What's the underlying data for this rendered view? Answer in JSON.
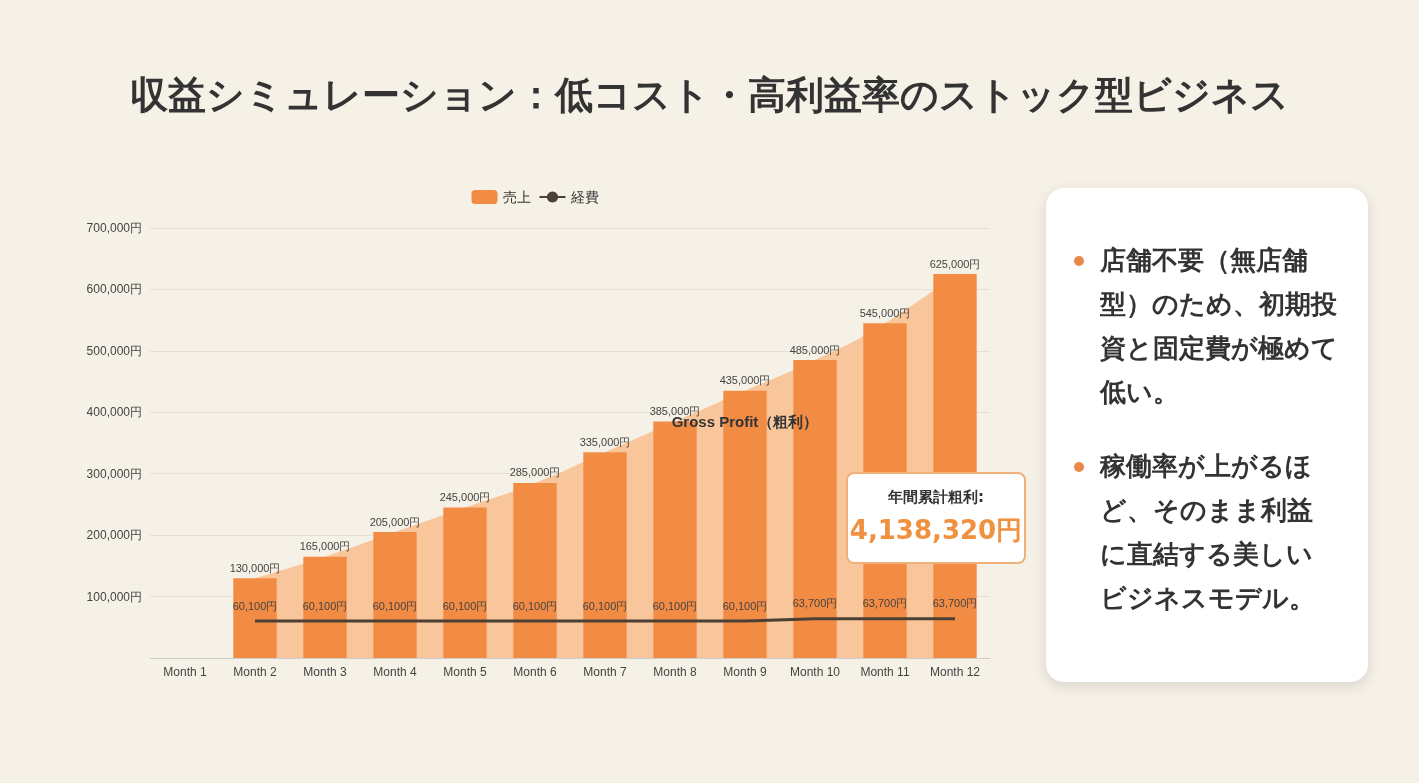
{
  "chart_data": {
    "type": "bar",
    "title": "収益シミュレーション：低コスト・高利益率のストック型ビジネス",
    "categories": [
      "Month 1",
      "Month 2",
      "Month 3",
      "Month 4",
      "Month 5",
      "Month 6",
      "Month 7",
      "Month 8",
      "Month 9",
      "Month 10",
      "Month 11",
      "Month 12"
    ],
    "series": [
      {
        "type": "area",
        "name": "Gross Profit（粗利）",
        "color": "#f8c69a",
        "values": [
          null,
          130000,
          165000,
          205000,
          245000,
          285000,
          335000,
          385000,
          435000,
          485000,
          545000,
          625000
        ]
      },
      {
        "name": "売上",
        "color": "#f28c45",
        "values": [
          null,
          130000,
          165000,
          205000,
          245000,
          285000,
          335000,
          385000,
          435000,
          485000,
          545000,
          625000
        ],
        "value_labels": [
          null,
          "130,000円",
          "165,000円",
          "205,000円",
          "245,000円",
          "285,000円",
          "335,000円",
          "385,000円",
          "435,000円",
          "485,000円",
          "545,000円",
          "625,000円"
        ]
      },
      {
        "type": "line",
        "name": "経費",
        "color": "#4a4036",
        "values": [
          null,
          60100,
          60100,
          60100,
          60100,
          60100,
          60100,
          60100,
          60100,
          63700,
          63700,
          63700
        ],
        "value_labels": [
          null,
          "60,100円",
          "60,100円",
          "60,100円",
          "60,100円",
          "60,100円",
          "60,100円",
          "60,100円",
          "60,100円",
          "63,700円",
          "63,700円",
          "63,700円"
        ]
      }
    ],
    "ylim": [
      0,
      700000
    ],
    "yticks": [
      {
        "value": 0,
        "label": null
      },
      {
        "value": 100000,
        "label": "100,000円"
      },
      {
        "value": 200000,
        "label": "200,000円"
      },
      {
        "value": 300000,
        "label": "300,000円"
      },
      {
        "value": 400000,
        "label": "400,000円"
      },
      {
        "value": 500000,
        "label": "500,000円"
      },
      {
        "value": 600000,
        "label": "600,000円"
      },
      {
        "value": 700000,
        "label": "700,000円"
      }
    ],
    "grid": "y",
    "legend": "top",
    "marker": "none",
    "annotations": [
      "年間累計粗利:",
      "4,138,320円",
      "店舗不要（無店舗型）のため、初期投資と固定費が極めて低い。",
      "稼働率が上がるほど、そのまま利益に直結する美しいビジネスモデル。"
    ]
  }
}
